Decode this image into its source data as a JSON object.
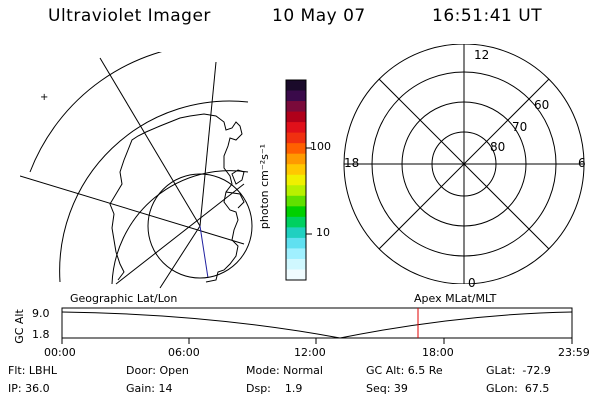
{
  "header": {
    "title": "Ultraviolet Imager",
    "date": "10 May 07",
    "time": "16:51:41 UT"
  },
  "geo_map": {
    "label": "Geographic Lat/Lon"
  },
  "colorbar": {
    "label": "photon cm⁻²s⁻¹",
    "ticks": [
      "100",
      "10"
    ],
    "colors": [
      "#1a0a2a",
      "#3a0a4a",
      "#7a0a3a",
      "#b0001a",
      "#e0101a",
      "#f03010",
      "#ff6000",
      "#ff9a00",
      "#ffc800",
      "#f0f000",
      "#b8f000",
      "#60e000",
      "#00d000",
      "#00d060",
      "#20d0c0",
      "#60e0f0",
      "#a0f0ff",
      "#d0f8ff",
      "#f0fcff"
    ]
  },
  "polar_plot": {
    "label": "Apex MLat/MLT",
    "mlt_labels": {
      "top": "12",
      "left": "18",
      "right": "6",
      "bottom": "0"
    },
    "lat_labels": [
      "60",
      "70",
      "80"
    ]
  },
  "altitude_plot": {
    "ylabel": "GC Alt",
    "y_ticks": [
      "9.0",
      "1.8"
    ],
    "x_ticks": [
      "00:00",
      "06:00",
      "12:00",
      "18:00",
      "23:59"
    ],
    "marker_color": "#e00000"
  },
  "info": {
    "flt": "Flt: LBHL",
    "ip": "IP: 36.0",
    "door": "Door: Open",
    "gain": "Gain: 14",
    "mode": "Mode: Normal",
    "dsp": "Dsp:    1.9",
    "gcalt": "GC Alt: 6.5 Re",
    "seq": "Seq: 39",
    "glat": "GLat:  -72.9",
    "glon": "GLon:  67.5"
  }
}
